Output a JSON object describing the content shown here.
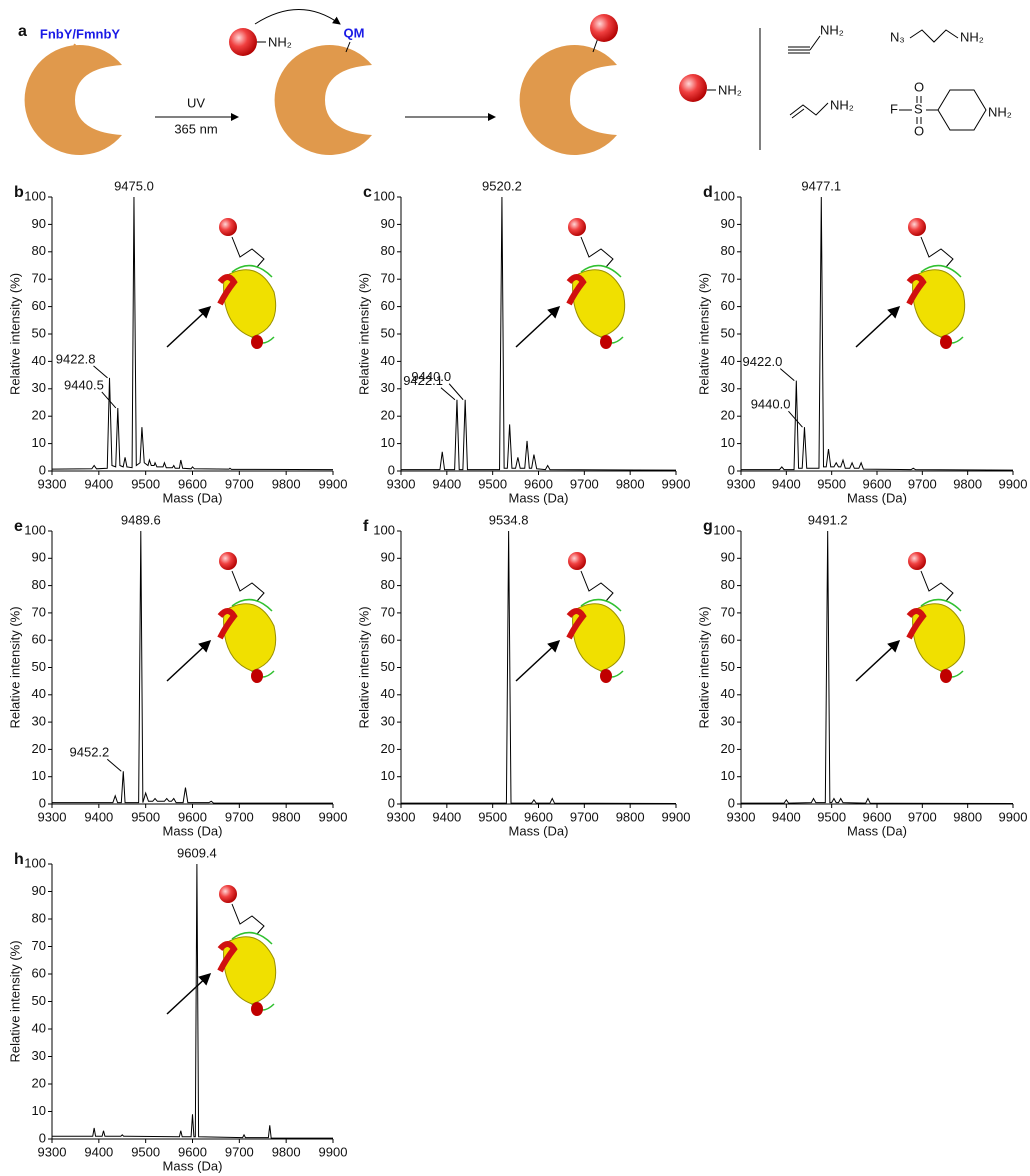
{
  "scheme": {
    "panel": "a",
    "probe": "FnbY/FmnbY",
    "reactive": "QM",
    "light": "UV",
    "wavelength": "365 nm",
    "bead_amine_1": "NH₂",
    "bead_amine_2": "NH₂",
    "amines": [
      "NH₂",
      "N₃",
      "NH₂",
      "NH₂",
      "F",
      "S",
      "O",
      "O",
      "NH₂"
    ]
  },
  "chart_data": [
    {
      "type": "line",
      "panel": "b",
      "xlabel": "Mass (Da)",
      "ylabel": "Relative intensity (%)",
      "xlim": [
        9300,
        9900
      ],
      "ylim": [
        0,
        100
      ],
      "xticks": [
        9300,
        9400,
        9500,
        9600,
        9700,
        9800,
        9900
      ],
      "yticks": [
        0,
        10,
        20,
        30,
        40,
        50,
        60,
        70,
        80,
        90,
        100
      ],
      "color": "#000000",
      "x": [
        9300,
        9385,
        9390,
        9395,
        9418,
        9422.8,
        9428,
        9436,
        9440.5,
        9445,
        9452,
        9456,
        9460,
        9471,
        9475.0,
        9480,
        9488,
        9492,
        9497,
        9505,
        9508,
        9512,
        9518,
        9520,
        9524,
        9537,
        9540,
        9544,
        9557,
        9560,
        9563,
        9572,
        9575,
        9579,
        9597,
        9600,
        9604,
        9678,
        9680,
        9683,
        9900
      ],
      "values": [
        0.7,
        0.8,
        2,
        0.8,
        1,
        34,
        2,
        1.5,
        23,
        2,
        1.5,
        5,
        1.5,
        1.2,
        100,
        2,
        3,
        16,
        3,
        2,
        4,
        2,
        2,
        3,
        1.5,
        1.5,
        3,
        1.2,
        1.2,
        2,
        1,
        1,
        4,
        1,
        0.8,
        1.5,
        0.8,
        0.7,
        1,
        0.6,
        0.5
      ],
      "annotations": [
        {
          "text": "9475.0",
          "x": 9475.0,
          "y": 100
        },
        {
          "text": "9422.8",
          "x": 9422.8,
          "y": 34
        },
        {
          "text": "9440.5",
          "x": 9440.5,
          "y": 23
        }
      ]
    },
    {
      "type": "line",
      "panel": "c",
      "xlabel": "Mass (Da)",
      "ylabel": "Relative intensity (%)",
      "xlim": [
        9300,
        9900
      ],
      "ylim": [
        0,
        100
      ],
      "xticks": [
        9300,
        9400,
        9500,
        9600,
        9700,
        9800,
        9900
      ],
      "yticks": [
        0,
        10,
        20,
        30,
        40,
        50,
        60,
        70,
        80,
        90,
        100
      ],
      "color": "#000000",
      "x": [
        9300,
        9385,
        9390,
        9395,
        9417,
        9422.1,
        9427,
        9435,
        9440.0,
        9445,
        9515,
        9520.2,
        9525,
        9532,
        9537,
        9542,
        9550,
        9555,
        9560,
        9570,
        9575,
        9580,
        9585,
        9590,
        9596,
        9615,
        9620,
        9625,
        9900
      ],
      "values": [
        0.5,
        0.5,
        7,
        0.5,
        0.5,
        26,
        0.5,
        0.5,
        26,
        0.5,
        0.5,
        100,
        1,
        1,
        17,
        1,
        1,
        5,
        1,
        1,
        11,
        1,
        1,
        6,
        0.8,
        0.5,
        2,
        0.5,
        0.3
      ],
      "annotations": [
        {
          "text": "9520.2",
          "x": 9520.2,
          "y": 100
        },
        {
          "text": "9422.1",
          "x": 9422.1,
          "y": 26
        },
        {
          "text": "9440.0",
          "x": 9440.0,
          "y": 26
        }
      ]
    },
    {
      "type": "line",
      "panel": "d",
      "xlabel": "Mass (Da)",
      "ylabel": "Relative intensity (%)",
      "xlim": [
        9300,
        9900
      ],
      "ylim": [
        0,
        100
      ],
      "xticks": [
        9300,
        9400,
        9500,
        9600,
        9700,
        9800,
        9900
      ],
      "yticks": [
        0,
        10,
        20,
        30,
        40,
        50,
        60,
        70,
        80,
        90,
        100
      ],
      "color": "#000000",
      "x": [
        9300,
        9385,
        9390,
        9395,
        9417,
        9422.0,
        9427,
        9435,
        9440.0,
        9445,
        9472,
        9477.1,
        9482,
        9488,
        9493,
        9498,
        9505,
        9510,
        9515,
        9520,
        9525,
        9530,
        9540,
        9545,
        9550,
        9560,
        9565,
        9570,
        9675,
        9680,
        9685,
        9900
      ],
      "values": [
        0.5,
        0.5,
        1.5,
        0.5,
        0.5,
        33,
        1,
        1,
        16,
        1,
        1,
        100,
        1.5,
        1.5,
        8,
        1.5,
        1.5,
        3,
        1.5,
        1.5,
        4,
        1,
        1,
        3,
        1,
        1,
        3,
        0.7,
        0.5,
        1,
        0.5,
        0.3
      ],
      "annotations": [
        {
          "text": "9477.1",
          "x": 9477.1,
          "y": 100
        },
        {
          "text": "9422.0",
          "x": 9422.0,
          "y": 33
        },
        {
          "text": "9440.0",
          "x": 9440.0,
          "y": 16
        }
      ]
    },
    {
      "type": "line",
      "panel": "e",
      "xlabel": "Mass (Da)",
      "ylabel": "Relative intensity (%)",
      "xlim": [
        9300,
        9900
      ],
      "ylim": [
        0,
        100
      ],
      "xticks": [
        9300,
        9400,
        9500,
        9600,
        9700,
        9800,
        9900
      ],
      "yticks": [
        0,
        10,
        20,
        30,
        40,
        50,
        60,
        70,
        80,
        90,
        100
      ],
      "color": "#000000",
      "x": [
        9300,
        9430,
        9435,
        9440,
        9448,
        9452.2,
        9456,
        9485,
        9489.6,
        9494,
        9500,
        9506,
        9515,
        9520,
        9525,
        9540,
        9545,
        9550,
        9555,
        9560,
        9565,
        9580,
        9585,
        9590,
        9635,
        9640,
        9645,
        9900
      ],
      "values": [
        0.5,
        0.5,
        3,
        0.5,
        0.5,
        12,
        0.5,
        0.5,
        100,
        0.5,
        4,
        1,
        1,
        2,
        1,
        1,
        2,
        1,
        1,
        2,
        0.5,
        0.5,
        6,
        0.5,
        0.5,
        1,
        0.3,
        0.3
      ],
      "annotations": [
        {
          "text": "9489.6",
          "x": 9489.6,
          "y": 100
        },
        {
          "text": "9452.2",
          "x": 9452.2,
          "y": 12
        }
      ]
    },
    {
      "type": "line",
      "panel": "f",
      "xlabel": "Mass (Da)",
      "ylabel": "Relative intensity (%)",
      "xlim": [
        9300,
        9900
      ],
      "ylim": [
        0,
        100
      ],
      "xticks": [
        9300,
        9400,
        9500,
        9600,
        9700,
        9800,
        9900
      ],
      "yticks": [
        0,
        10,
        20,
        30,
        40,
        50,
        60,
        70,
        80,
        90,
        100
      ],
      "color": "#000000",
      "x": [
        9300,
        9530,
        9534.8,
        9540,
        9585,
        9590,
        9595,
        9625,
        9630,
        9635,
        9900
      ],
      "values": [
        0.3,
        0.3,
        100,
        0.3,
        0.3,
        1.5,
        0.3,
        0.3,
        2,
        0.3,
        0.2
      ],
      "annotations": [
        {
          "text": "9534.8",
          "x": 9534.8,
          "y": 100
        }
      ]
    },
    {
      "type": "line",
      "panel": "g",
      "xlabel": "Mass (Da)",
      "ylabel": "Relative intensity (%)",
      "xlim": [
        9300,
        9900
      ],
      "ylim": [
        0,
        100
      ],
      "xticks": [
        9300,
        9400,
        9500,
        9600,
        9700,
        9800,
        9900
      ],
      "yticks": [
        0,
        10,
        20,
        30,
        40,
        50,
        60,
        70,
        80,
        90,
        100
      ],
      "color": "#000000",
      "x": [
        9300,
        9395,
        9400,
        9405,
        9455,
        9460,
        9465,
        9486,
        9491.2,
        9496,
        9500,
        9505,
        9510,
        9515,
        9520,
        9525,
        9575,
        9580,
        9585,
        9900
      ],
      "values": [
        0.3,
        0.3,
        1.5,
        0.3,
        0.5,
        2,
        0.5,
        0.5,
        100,
        0.5,
        0.5,
        2,
        0.5,
        0.5,
        2,
        0.5,
        0.3,
        2,
        0.3,
        0.2
      ],
      "annotations": [
        {
          "text": "9491.2",
          "x": 9491.2,
          "y": 100
        }
      ]
    },
    {
      "type": "line",
      "panel": "h",
      "xlabel": "Mass (Da)",
      "ylabel": "Relative intensity (%)",
      "xlim": [
        9300,
        9900
      ],
      "ylim": [
        0,
        100
      ],
      "xticks": [
        9300,
        9400,
        9500,
        9600,
        9700,
        9800,
        9900
      ],
      "yticks": [
        0,
        10,
        20,
        30,
        40,
        50,
        60,
        70,
        80,
        90,
        100
      ],
      "color": "#000000",
      "x": [
        9300,
        9387,
        9390,
        9393,
        9407,
        9410,
        9413,
        9447,
        9450,
        9453,
        9572,
        9575,
        9578,
        9597,
        9600,
        9603,
        9606,
        9609.4,
        9613,
        9707,
        9710,
        9713,
        9762,
        9765,
        9768,
        9900
      ],
      "values": [
        1,
        1,
        4,
        1,
        1,
        3,
        1,
        1,
        1.5,
        1,
        0.8,
        3,
        0.8,
        0.8,
        9,
        0.8,
        0.8,
        100,
        0.8,
        0.5,
        1.5,
        0.5,
        0.5,
        5,
        0.3,
        0.3
      ],
      "annotations": [
        {
          "text": "9609.4",
          "x": 9609.4,
          "y": 100
        }
      ]
    }
  ]
}
